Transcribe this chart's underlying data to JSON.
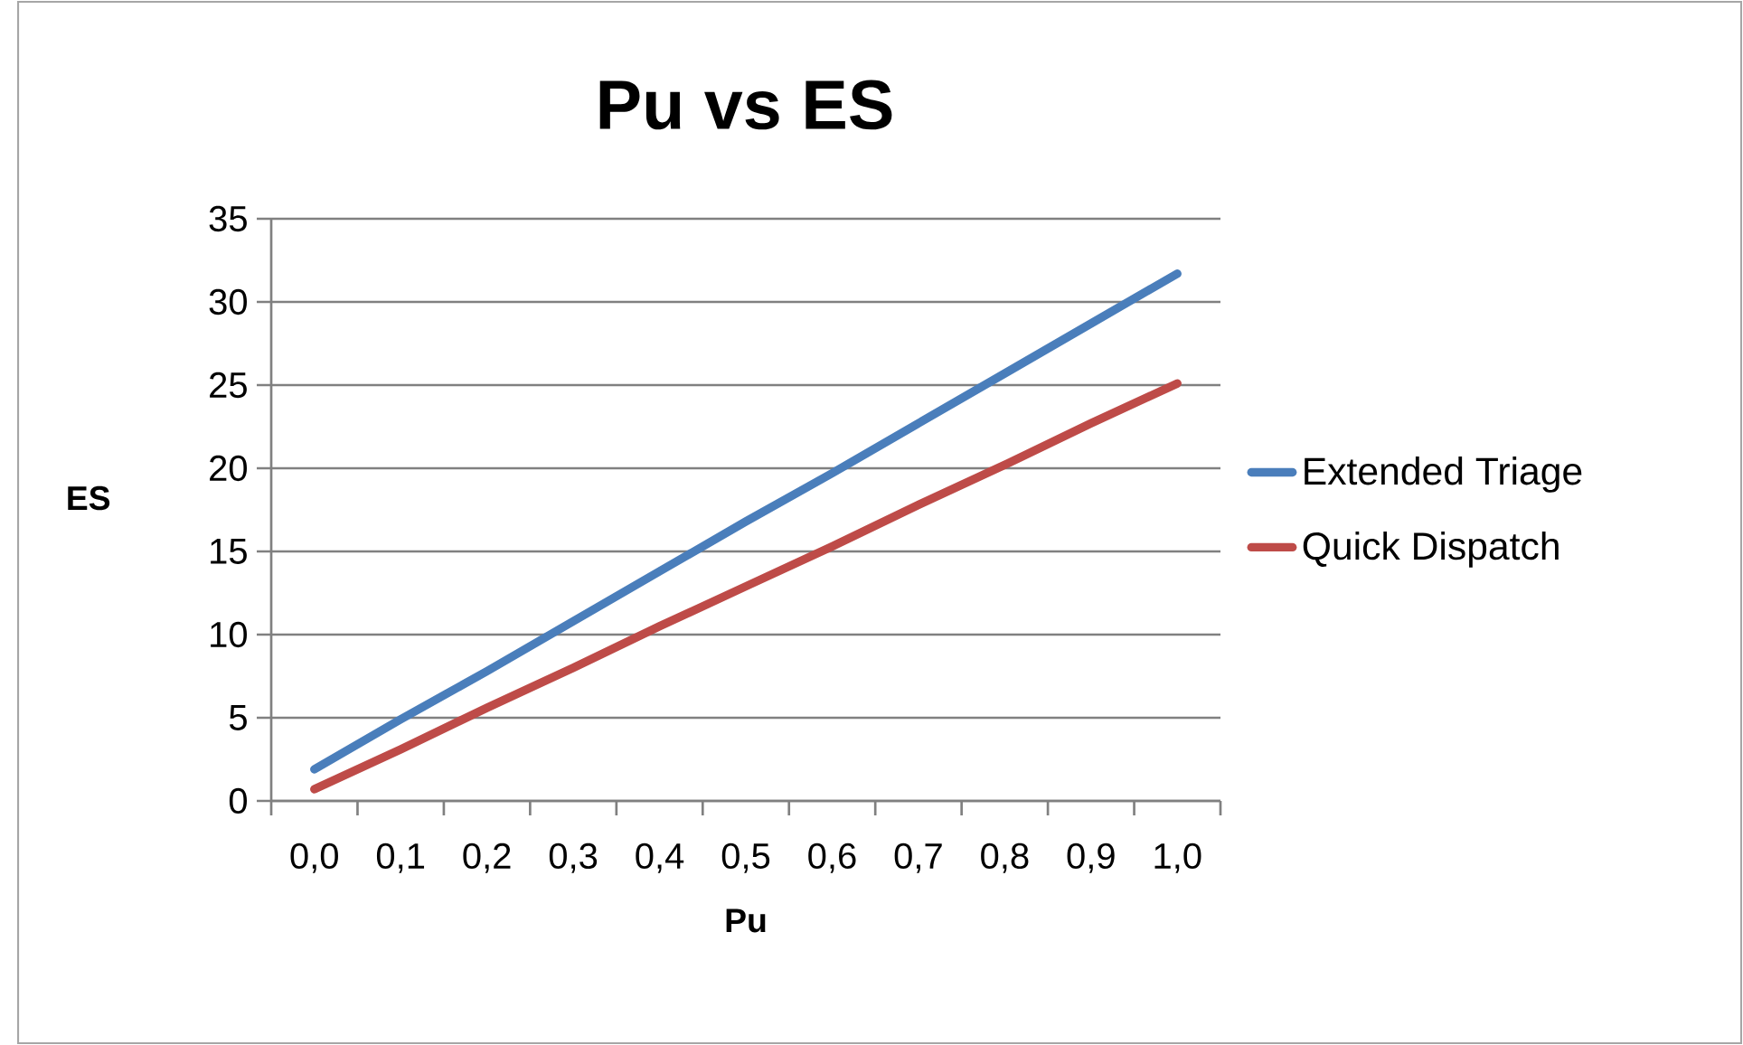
{
  "chart_data": {
    "type": "line",
    "title": "Pu vs ES",
    "xlabel": "Pu",
    "ylabel": "ES",
    "categories": [
      "0,0",
      "0,1",
      "0,2",
      "0,3",
      "0,4",
      "0,5",
      "0,6",
      "0,7",
      "0,8",
      "0,9",
      "1,0"
    ],
    "series": [
      {
        "name": "Extended Triage",
        "color": "#4a7ebb",
        "values": [
          1.9,
          4.9,
          7.8,
          10.8,
          13.8,
          16.8,
          19.7,
          22.7,
          25.7,
          28.7,
          31.7
        ]
      },
      {
        "name": "Quick Dispatch",
        "color": "#be4b48",
        "values": [
          0.7,
          3.1,
          5.6,
          8.0,
          10.5,
          12.9,
          15.3,
          17.8,
          20.2,
          22.7,
          25.1
        ]
      }
    ],
    "ylim": [
      0,
      35
    ],
    "yticks": [
      0,
      5,
      10,
      15,
      20,
      25,
      30,
      35
    ],
    "grid": "y",
    "legend": "right",
    "marker": "none",
    "line_style": "solid"
  }
}
